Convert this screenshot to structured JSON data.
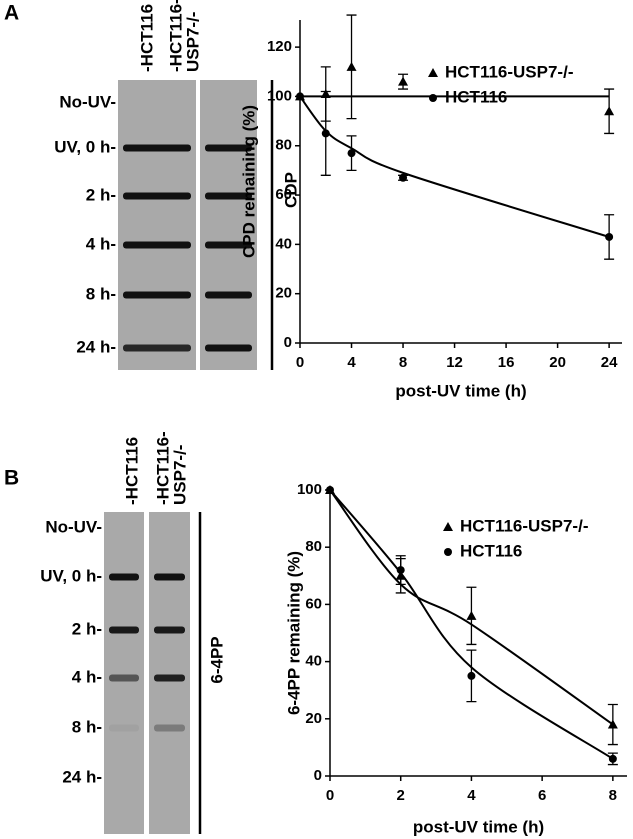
{
  "panels": [
    {
      "label": "A",
      "lanes": [
        [
          "-HCT116"
        ],
        [
          "-HCT116-",
          "USP7-/-"
        ]
      ],
      "rows": [
        "No-UV-",
        "UV, 0 h-",
        "2 h-",
        "4 h-",
        "8 h-",
        "24 h-"
      ],
      "assay": "CDP"
    },
    {
      "label": "B",
      "lanes": [
        [
          "-HCT116"
        ],
        [
          "-HCT116-",
          "USP7-/-"
        ]
      ],
      "rows": [
        "No-UV-",
        "UV, 0 h-",
        "2 h-",
        "4 h-",
        "8 h-",
        "24 h-"
      ],
      "assay": "6-4PP"
    }
  ],
  "chart_data": [
    {
      "type": "line",
      "xlabel": "post-UV time (h)",
      "ylabel": "CPD remaining (%)",
      "xlim": [
        0,
        25
      ],
      "xticks": [
        0,
        4,
        8,
        12,
        16,
        20,
        24
      ],
      "ylim": [
        0,
        131
      ],
      "yticks": [
        0,
        20,
        40,
        60,
        80,
        100,
        120
      ],
      "x": [
        0,
        2,
        4,
        8,
        24
      ],
      "series": [
        {
          "name": "HCT116-USP7-/-",
          "marker": "triangle",
          "color": "#000000",
          "values": [
            100,
            101,
            112,
            106,
            94
          ],
          "errors": [
            0,
            11,
            21,
            3,
            9
          ],
          "fit": [
            100,
            100,
            100,
            100,
            100
          ]
        },
        {
          "name": "HCT116",
          "marker": "circle",
          "color": "#000000",
          "values": [
            100,
            85,
            77,
            67,
            43
          ],
          "errors": [
            0,
            17,
            7,
            1,
            9
          ],
          "fit": [
            100,
            86,
            79,
            69,
            43
          ]
        }
      ]
    },
    {
      "type": "line",
      "xlabel": "post-UV time (h)",
      "ylabel": "6-4PP remaining (%)",
      "xlim": [
        0,
        8.4
      ],
      "xticks": [
        0,
        2,
        4,
        6,
        8
      ],
      "ylim": [
        0,
        100
      ],
      "yticks": [
        0,
        20,
        40,
        60,
        80,
        100
      ],
      "x": [
        0,
        2,
        4,
        8
      ],
      "series": [
        {
          "name": "HCT116-USP7-/-",
          "marker": "triangle",
          "color": "#000000",
          "values": [
            100,
            70,
            56,
            18
          ],
          "errors": [
            0,
            6,
            10,
            7
          ],
          "fit": [
            100,
            67,
            53,
            18
          ]
        },
        {
          "name": "HCT116",
          "marker": "circle",
          "color": "#000000",
          "values": [
            100,
            72,
            35,
            6
          ],
          "errors": [
            0,
            5,
            9,
            2
          ],
          "fit": [
            100,
            71,
            38,
            6
          ]
        }
      ]
    }
  ]
}
